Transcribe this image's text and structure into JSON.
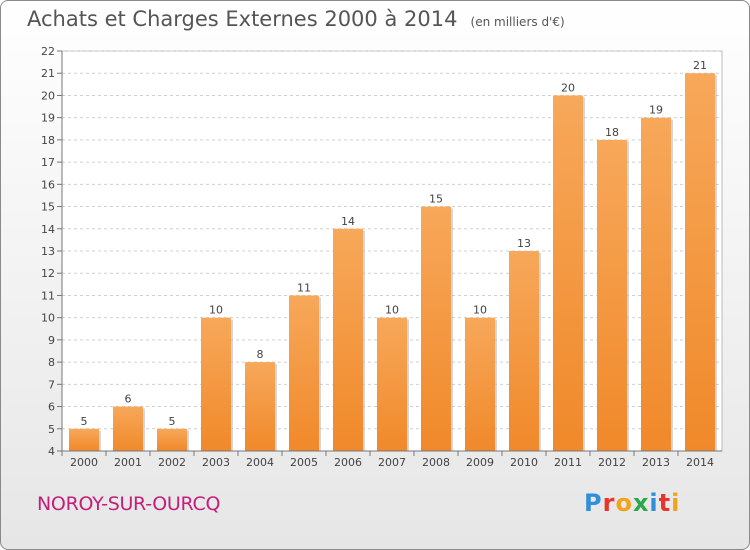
{
  "header": {
    "title": "Achats et Charges Externes 2000 à 2014",
    "unit": "(en milliers d'€)"
  },
  "footer": {
    "commune": "NOROY-SUR-OURCQ",
    "logo_letters": [
      "P",
      "r",
      "o",
      "x",
      "i",
      "t",
      "i"
    ]
  },
  "colors": {
    "bar": "#f0892a",
    "bar_light": "#f7a85a",
    "commune_text": "#c21f7a",
    "logo": [
      "#2f8fd8",
      "#e8342c",
      "#f2a31a",
      "#2aa84a",
      "#2f8fd8",
      "#e8342c",
      "#f2a31a"
    ]
  },
  "chart_data": {
    "type": "bar",
    "title": "Achats et Charges Externes 2000 à 2014",
    "subtitle": "(en milliers d'€)",
    "categories": [
      "2000",
      "2001",
      "2002",
      "2003",
      "2004",
      "2005",
      "2006",
      "2007",
      "2008",
      "2009",
      "2010",
      "2011",
      "2012",
      "2013",
      "2014"
    ],
    "values": [
      5,
      6,
      5,
      10,
      8,
      11,
      14,
      10,
      15,
      10,
      13,
      20,
      18,
      19,
      21
    ],
    "ylim": [
      4,
      22
    ],
    "yticks": [
      4,
      5,
      6,
      7,
      8,
      9,
      10,
      11,
      12,
      13,
      14,
      15,
      16,
      17,
      18,
      19,
      20,
      21,
      22
    ],
    "grid": true,
    "data_labels": true
  }
}
